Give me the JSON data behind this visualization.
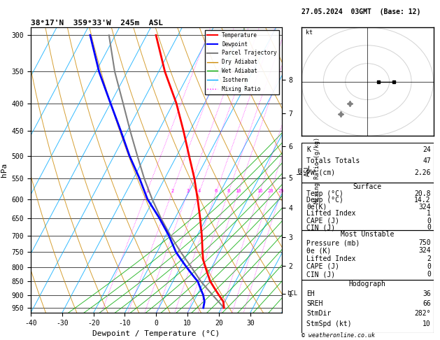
{
  "title_left": "38°17'N  359°33'W  245m  ASL",
  "title_right": "27.05.2024  03GMT  (Base: 12)",
  "xlabel": "Dewpoint / Temperature (°C)",
  "ylabel_left": "hPa",
  "pressure_levels": [
    300,
    350,
    400,
    450,
    500,
    550,
    600,
    650,
    700,
    750,
    800,
    850,
    900,
    950
  ],
  "xticks": [
    -40,
    -30,
    -20,
    -10,
    0,
    10,
    20,
    30
  ],
  "temp_profile_p": [
    950,
    925,
    900,
    875,
    850,
    825,
    800,
    775,
    750,
    700,
    650,
    600,
    550,
    500,
    450,
    400,
    350,
    300
  ],
  "temp_profile_T": [
    20.8,
    19.5,
    17.0,
    14.5,
    12.0,
    10.0,
    8.0,
    6.0,
    4.5,
    1.5,
    -2.0,
    -6.0,
    -10.5,
    -16.0,
    -22.0,
    -29.0,
    -38.0,
    -47.0
  ],
  "dewp_profile_p": [
    950,
    925,
    900,
    875,
    850,
    825,
    800,
    775,
    750,
    700,
    650,
    600,
    550,
    500,
    450,
    400,
    350,
    300
  ],
  "dewp_profile_T": [
    14.2,
    13.5,
    12.0,
    10.0,
    8.0,
    5.0,
    2.0,
    -1.0,
    -4.0,
    -9.0,
    -15.0,
    -22.0,
    -28.0,
    -35.0,
    -42.0,
    -50.0,
    -59.0,
    -68.0
  ],
  "parcel_profile_p": [
    950,
    900,
    850,
    800,
    750,
    700,
    650,
    600,
    550,
    500,
    450,
    400,
    350,
    300
  ],
  "parcel_profile_T": [
    20.8,
    15.0,
    9.0,
    3.5,
    -2.5,
    -8.5,
    -14.5,
    -20.5,
    -26.5,
    -32.5,
    -39.0,
    -46.0,
    -54.0,
    -62.0
  ],
  "color_temp": "#ff0000",
  "color_dewp": "#0000ff",
  "color_parcel": "#808080",
  "color_dry_adiabat": "#cc8800",
  "color_wet_adiabat": "#00aa00",
  "color_isotherm": "#00aaff",
  "color_mixing_ratio": "#ff00ff",
  "lcl_pressure": 895,
  "km_ticks": [
    1,
    2,
    3,
    4,
    5,
    6,
    7,
    8
  ],
  "km_pressures": [
    895,
    795,
    705,
    622,
    548,
    480,
    418,
    362
  ],
  "mixing_ratio_values": [
    1,
    2,
    3,
    4,
    6,
    8,
    10,
    16,
    20,
    25
  ],
  "stats": {
    "K": 24,
    "Totals_Totals": 47,
    "PW_cm": 2.26,
    "Surface_Temp": 20.8,
    "Surface_Dewp": 14.2,
    "Surface_theta_e": 324,
    "Surface_LI": 1,
    "Surface_CAPE": 0,
    "Surface_CIN": 0,
    "MU_Pressure": 750,
    "MU_theta_e": 324,
    "MU_LI": 2,
    "MU_CAPE": 0,
    "MU_CIN": 0,
    "EH": 36,
    "SREH": 66,
    "StmDir": 282,
    "StmSpd_kt": 10
  },
  "background_color": "#ffffff"
}
